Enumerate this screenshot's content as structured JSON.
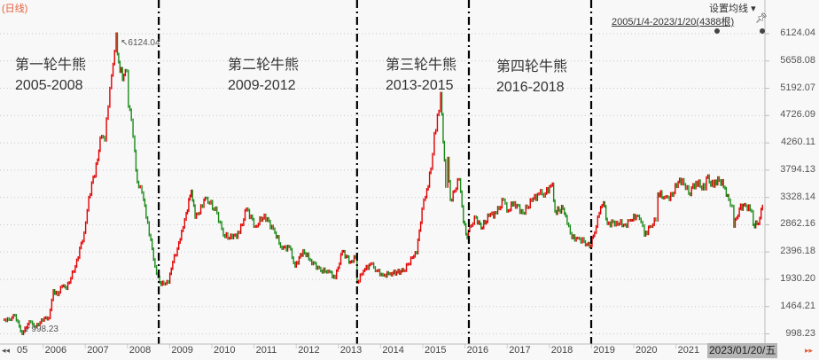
{
  "header": {
    "title": "(日线)",
    "ma_setting": "设置均线",
    "range": "2005/1/4-2023/1/20(4388根)"
  },
  "annotations": [
    {
      "title": "第一轮牛熊",
      "years": "2005-2008"
    },
    {
      "title": "第二轮牛熊",
      "years": "2009-2012"
    },
    {
      "title": "第三轮牛熊",
      "years": "2013-2015"
    },
    {
      "title": "第四轮牛熊",
      "years": "2016-2018"
    }
  ],
  "cursor_date": "2023/01/20/五",
  "chart_data": {
    "type": "line",
    "style": "candlestick-daily",
    "up_color": "#e00000",
    "down_color": "#1a8a1a",
    "grid": true,
    "ylim": [
      998.23,
      6124.04
    ],
    "y_ticks": [
      "6124.04",
      "5658.08",
      "5192.07",
      "4726.09",
      "4260.11",
      "3794.13",
      "3328.14",
      "2862.16",
      "2396.18",
      "1930.20",
      "1464.21",
      "998.23"
    ],
    "x_ticks": [
      "05",
      "2006",
      "2007",
      "2008",
      "2009",
      "2010",
      "2011",
      "2012",
      "2013",
      "2014",
      "2015",
      "2016",
      "2017",
      "2018",
      "2019",
      "2020",
      "2021"
    ],
    "xlim": [
      2005.0,
      2023.05
    ],
    "max_label": "6124.04",
    "min_label": "998.23",
    "dividers": [
      2008.7,
      2013.4,
      2016.05,
      2018.95
    ],
    "points": [
      [
        2005.0,
        1240
      ],
      [
        2005.15,
        1240
      ],
      [
        2005.29,
        1315
      ],
      [
        2005.46,
        998.23
      ],
      [
        2005.63,
        1209
      ],
      [
        2005.78,
        1118
      ],
      [
        2005.99,
        1270
      ],
      [
        2006.09,
        1270
      ],
      [
        2006.2,
        1740
      ],
      [
        2006.3,
        1664
      ],
      [
        2006.41,
        1816
      ],
      [
        2006.51,
        1770
      ],
      [
        2006.72,
        2150
      ],
      [
        2006.93,
        2726
      ],
      [
        2007.04,
        3333
      ],
      [
        2007.25,
        3970
      ],
      [
        2007.31,
        4349
      ],
      [
        2007.42,
        4304
      ],
      [
        2007.5,
        4880
      ],
      [
        2007.58,
        5411
      ],
      [
        2007.69,
        6124.04
      ],
      [
        2007.75,
        5639
      ],
      [
        2007.84,
        5335
      ],
      [
        2007.94,
        5487
      ],
      [
        2007.98,
        4880
      ],
      [
        2008.05,
        4653
      ],
      [
        2008.13,
        4122
      ],
      [
        2008.19,
        3591
      ],
      [
        2008.26,
        3515
      ],
      [
        2008.34,
        3287
      ],
      [
        2008.4,
        2984
      ],
      [
        2008.51,
        2605
      ],
      [
        2008.61,
        2150
      ],
      [
        2008.72,
        1876
      ],
      [
        2008.82,
        1846
      ],
      [
        2008.93,
        1876
      ],
      [
        2009.03,
        2225
      ],
      [
        2009.14,
        2453
      ],
      [
        2009.24,
        2756
      ],
      [
        2009.35,
        3060
      ],
      [
        2009.47,
        3439
      ],
      [
        2009.56,
        2984
      ],
      [
        2009.66,
        3060
      ],
      [
        2009.77,
        3287
      ],
      [
        2009.83,
        3318
      ],
      [
        2010.08,
        3060
      ],
      [
        2010.23,
        2680
      ],
      [
        2010.44,
        2635
      ],
      [
        2010.61,
        2726
      ],
      [
        2010.78,
        3135
      ],
      [
        2010.99,
        2832
      ],
      [
        2011.2,
        3029
      ],
      [
        2011.45,
        2726
      ],
      [
        2011.62,
        2453
      ],
      [
        2011.79,
        2483
      ],
      [
        2011.93,
        2150
      ],
      [
        2012.12,
        2423
      ],
      [
        2012.29,
        2256
      ],
      [
        2012.54,
        2074
      ],
      [
        2012.71,
        2074
      ],
      [
        2012.88,
        1952
      ],
      [
        2013.05,
        2407
      ],
      [
        2013.24,
        2225
      ],
      [
        2013.36,
        2301
      ],
      [
        2013.4,
        1876
      ],
      [
        2013.55,
        2074
      ],
      [
        2013.72,
        2195
      ],
      [
        2013.87,
        2074
      ],
      [
        2014.01,
        1998
      ],
      [
        2014.18,
        2028
      ],
      [
        2014.5,
        2074
      ],
      [
        2014.71,
        2301
      ],
      [
        2014.81,
        2377
      ],
      [
        2014.94,
        3135
      ],
      [
        2015.02,
        3333
      ],
      [
        2015.15,
        3818
      ],
      [
        2015.23,
        4425
      ],
      [
        2015.34,
        4804
      ],
      [
        2015.38,
        5108
      ],
      [
        2015.44,
        4273
      ],
      [
        2015.5,
        3515
      ],
      [
        2015.55,
        4000
      ],
      [
        2015.61,
        3287
      ],
      [
        2015.71,
        3439
      ],
      [
        2015.82,
        3636
      ],
      [
        2015.92,
        2908
      ],
      [
        2016.01,
        2635
      ],
      [
        2016.07,
        2832
      ],
      [
        2016.22,
        2984
      ],
      [
        2016.34,
        2802
      ],
      [
        2016.53,
        3014
      ],
      [
        2016.7,
        3060
      ],
      [
        2016.87,
        3287
      ],
      [
        2016.95,
        3090
      ],
      [
        2017.12,
        3242
      ],
      [
        2017.33,
        3060
      ],
      [
        2017.54,
        3272
      ],
      [
        2017.71,
        3393
      ],
      [
        2017.86,
        3393
      ],
      [
        2017.96,
        3515
      ],
      [
        2018.03,
        3560
      ],
      [
        2018.09,
        3090
      ],
      [
        2018.28,
        3135
      ],
      [
        2018.38,
        2878
      ],
      [
        2018.49,
        2635
      ],
      [
        2018.63,
        2635
      ],
      [
        2018.78,
        2574
      ],
      [
        2018.91,
        2483
      ],
      [
        2019.03,
        2726
      ],
      [
        2019.14,
        3060
      ],
      [
        2019.24,
        3242
      ],
      [
        2019.33,
        2878
      ],
      [
        2019.54,
        2908
      ],
      [
        2019.75,
        2862
      ],
      [
        2019.89,
        2938
      ],
      [
        2020.02,
        3014
      ],
      [
        2020.13,
        2908
      ],
      [
        2020.21,
        2680
      ],
      [
        2020.34,
        2832
      ],
      [
        2020.48,
        2938
      ],
      [
        2020.53,
        3393
      ],
      [
        2020.69,
        3333
      ],
      [
        2020.8,
        3287
      ],
      [
        2021.01,
        3591
      ],
      [
        2021.11,
        3636
      ],
      [
        2021.26,
        3393
      ],
      [
        2021.43,
        3591
      ],
      [
        2021.64,
        3469
      ],
      [
        2021.68,
        3667
      ],
      [
        2021.85,
        3515
      ],
      [
        2021.95,
        3667
      ],
      [
        2022.12,
        3484
      ],
      [
        2022.21,
        3287
      ],
      [
        2022.29,
        3181
      ],
      [
        2022.33,
        2832
      ],
      [
        2022.46,
        3135
      ],
      [
        2022.58,
        3211
      ],
      [
        2022.75,
        3090
      ],
      [
        2022.79,
        2862
      ],
      [
        2022.91,
        2878
      ],
      [
        2023.01,
        3181
      ]
    ]
  }
}
